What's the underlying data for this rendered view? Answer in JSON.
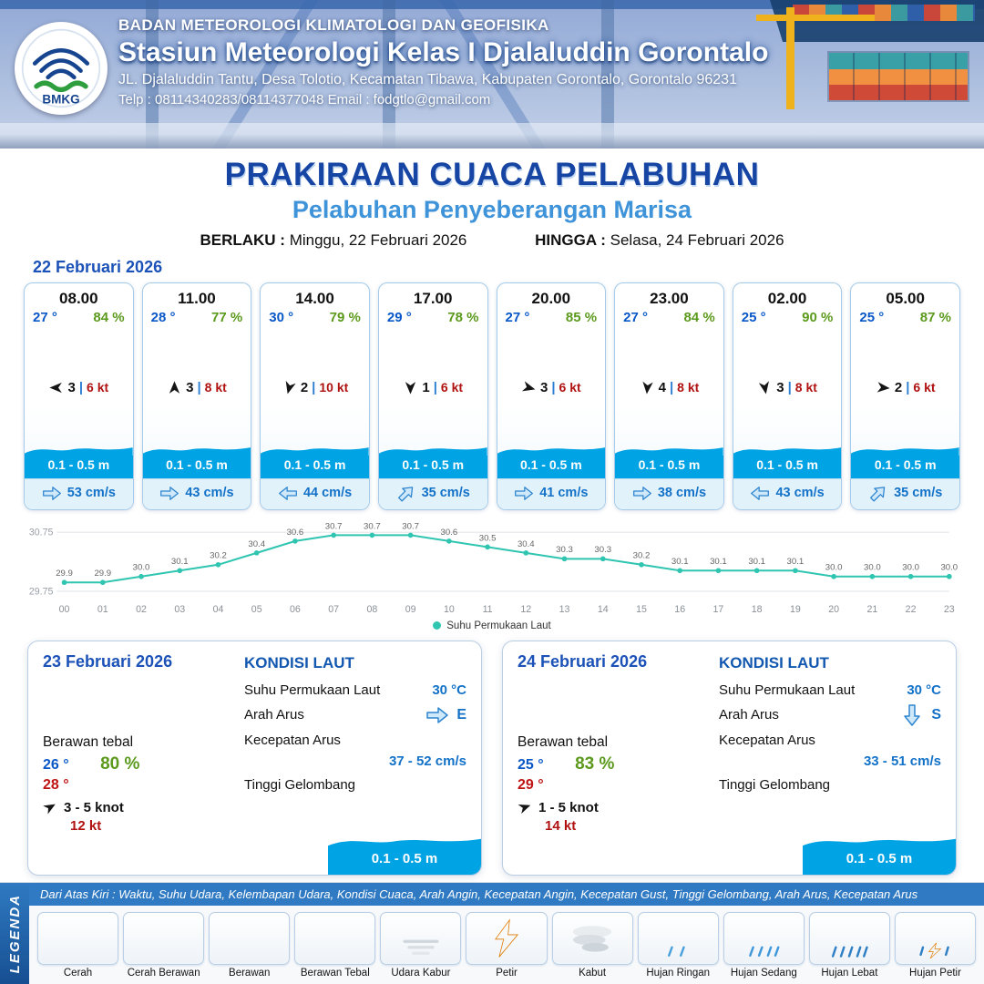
{
  "colors": {
    "primary_blue": "#1745a3",
    "accent_blue": "#3f93d9",
    "value_blue": "#1372c8",
    "humidity_green": "#5c9a1e",
    "alert_red": "#b01111",
    "wave_blue": "#00a3e4",
    "chart_teal": "#2fc5b1"
  },
  "header": {
    "logo_text": "BMKG",
    "org": "BADAN METEOROLOGI KLIMATOLOGI DAN GEOFISIKA",
    "station": "Stasiun Meteorologi Kelas I Djalaluddin Gorontalo",
    "address": "JL. Djalaluddin Tantu, Desa Tolotio, Kecamatan Tibawa, Kabupaten Gorontalo, Gorontalo 96231",
    "contact": "Telp : 08114340283/08114377048 Email : fodgtlo@gmail.com"
  },
  "title": {
    "main": "PRAKIRAAN CUACA PELABUHAN",
    "sub": "Pelabuhan Penyeberangan Marisa",
    "valid_label": "BERLAKU :",
    "valid_value": "Minggu, 22 Februari 2026",
    "until_label": "HINGGA :",
    "until_value": "Selasa, 24 Februari 2026"
  },
  "hourly": {
    "date": "22 Februari 2026",
    "items": [
      {
        "time": "08.00",
        "temp": "27 °",
        "rh": "84 %",
        "icon": "berawan",
        "wind_rot": 180,
        "wind_force": "3",
        "wind_speed": "6 kt",
        "wave": "0.1 - 0.5 m",
        "current_rot": 0,
        "current_speed": "53 cm/s"
      },
      {
        "time": "11.00",
        "temp": "28 °",
        "rh": "77 %",
        "icon": "berawan",
        "wind_rot": -90,
        "wind_force": "3",
        "wind_speed": "8 kt",
        "wave": "0.1 - 0.5 m",
        "current_rot": 0,
        "current_speed": "43 cm/s"
      },
      {
        "time": "14.00",
        "temp": "30 °",
        "rh": "79 %",
        "icon": "berawan",
        "wind_rot": 105,
        "wind_force": "2",
        "wind_speed": "10 kt",
        "wave": "0.1 - 0.5 m",
        "current_rot": 180,
        "current_speed": "44 cm/s"
      },
      {
        "time": "17.00",
        "temp": "29 °",
        "rh": "78 %",
        "icon": "berawan",
        "wind_rot": 90,
        "wind_force": "1",
        "wind_speed": "6 kt",
        "wave": "0.1 - 0.5 m",
        "current_rot": -45,
        "current_speed": "35 cm/s"
      },
      {
        "time": "20.00",
        "temp": "27 °",
        "rh": "85 %",
        "icon": "berawan",
        "wind_rot": 15,
        "wind_force": "3",
        "wind_speed": "6 kt",
        "wave": "0.1 - 0.5 m",
        "current_rot": 0,
        "current_speed": "41 cm/s"
      },
      {
        "time": "23.00",
        "temp": "27 °",
        "rh": "84 %",
        "icon": "berawan",
        "wind_rot": 95,
        "wind_force": "4",
        "wind_speed": "8 kt",
        "wave": "0.1 - 0.5 m",
        "current_rot": 0,
        "current_speed": "38 cm/s"
      },
      {
        "time": "02.00",
        "temp": "25 °",
        "rh": "90 %",
        "icon": "berawan",
        "wind_rot": 80,
        "wind_force": "3",
        "wind_speed": "8 kt",
        "wave": "0.1 - 0.5 m",
        "current_rot": 180,
        "current_speed": "43 cm/s"
      },
      {
        "time": "05.00",
        "temp": "25 °",
        "rh": "87 %",
        "icon": "berawan",
        "wind_rot": 5,
        "wind_force": "2",
        "wind_speed": "6 kt",
        "wave": "0.1 - 0.5 m",
        "current_rot": -45,
        "current_speed": "35 cm/s"
      }
    ]
  },
  "chart_data": {
    "type": "line",
    "title": "",
    "x": [
      "00",
      "01",
      "02",
      "03",
      "04",
      "05",
      "06",
      "07",
      "08",
      "09",
      "10",
      "11",
      "12",
      "13",
      "14",
      "15",
      "16",
      "17",
      "18",
      "19",
      "20",
      "21",
      "22",
      "23"
    ],
    "series": [
      {
        "name": "Suhu Permukaan Laut",
        "values": [
          29.9,
          29.9,
          30.0,
          30.1,
          30.2,
          30.4,
          30.6,
          30.7,
          30.7,
          30.7,
          30.6,
          30.5,
          30.4,
          30.3,
          30.3,
          30.2,
          30.1,
          30.1,
          30.1,
          30.1,
          30.0,
          30.0,
          30.0,
          30.0
        ]
      }
    ],
    "ylim": [
      29.75,
      30.75
    ],
    "yticks": [
      29.75,
      30.75
    ],
    "line_color": "#2fc5b1",
    "legend_position": "bottom",
    "grid": false
  },
  "day_cards": [
    {
      "date": "23 Februari 2026",
      "icon": "berawan",
      "condition": "Berawan tebal",
      "temp_min": "26 °",
      "humidity": "80 %",
      "temp_max": "28 °",
      "wind_rot": -30,
      "wind": "3 - 5 knot",
      "gust": "12 kt",
      "sea": {
        "title": "KONDISI LAUT",
        "sst_label": "Suhu Permukaan Laut",
        "sst_value": "30 °C",
        "current_dir_label": "Arah Arus",
        "current_dir": "E",
        "current_rot": 0,
        "current_speed_label": "Kecepatan Arus",
        "current_speed": "37 - 52 cm/s",
        "wave_label": "Tinggi Gelombang",
        "wave_value": "0.1 - 0.5 m"
      }
    },
    {
      "date": "24 Februari 2026",
      "icon": "berawan",
      "condition": "Berawan tebal",
      "temp_min": "25 °",
      "humidity": "83 %",
      "temp_max": "29 °",
      "wind_rot": -20,
      "wind": "1 - 5 knot",
      "gust": "14 kt",
      "sea": {
        "title": "KONDISI LAUT",
        "sst_label": "Suhu Permukaan Laut",
        "sst_value": "30 °C",
        "current_dir_label": "Arah Arus",
        "current_dir": "S",
        "current_rot": 90,
        "current_speed_label": "Kecepatan Arus",
        "current_speed": "33 - 51 cm/s",
        "wave_label": "Tinggi Gelombang",
        "wave_value": "0.1 - 0.5 m"
      }
    }
  ],
  "legend": {
    "title": "LEGENDA",
    "description": "Dari Atas Kiri : Waktu, Suhu Udara, Kelembapan Udara, Kondisi Cuaca, Arah Angin, Kecepatan Angin, Kecepatan Gust, Tinggi Gelombang, Arah Arus, Kecepatan Arus",
    "items": [
      {
        "label": "Cerah",
        "icon": "cerah"
      },
      {
        "label": "Cerah Berawan",
        "icon": "cerah-berawan"
      },
      {
        "label": "Berawan",
        "icon": "berawan"
      },
      {
        "label": "Berawan Tebal",
        "icon": "berawan-tebal"
      },
      {
        "label": "Udara Kabur",
        "icon": "udara-kabur"
      },
      {
        "label": "Petir",
        "icon": "petir"
      },
      {
        "label": "Kabut",
        "icon": "kabut"
      },
      {
        "label": "Hujan Ringan",
        "icon": "hujan-ringan"
      },
      {
        "label": "Hujan Sedang",
        "icon": "hujan-sedang"
      },
      {
        "label": "Hujan Lebat",
        "icon": "hujan-lebat"
      },
      {
        "label": "Hujan Petir",
        "icon": "hujan-petir"
      }
    ]
  }
}
